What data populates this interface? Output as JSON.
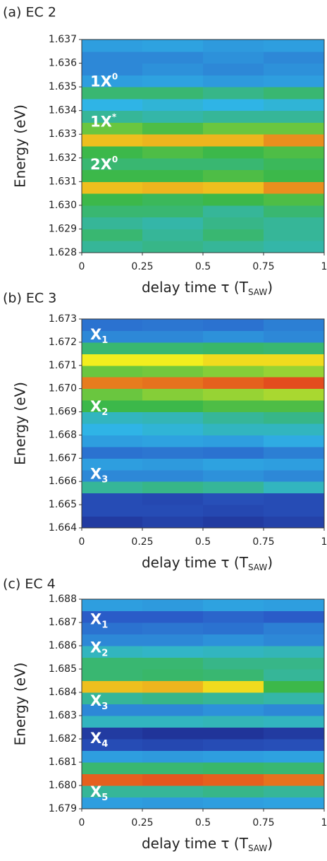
{
  "chart_data": [
    {
      "type": "heatmap",
      "title": "(a) EC 2",
      "xlabel": "delay time τ (T",
      "xlabel_sub": "SAW",
      "xlabel_end": ")",
      "ylabel": "Energy (eV)",
      "xlim": [
        0,
        1
      ],
      "xticks": [
        0,
        0.25,
        0.5,
        0.75,
        1
      ],
      "ylim": [
        1.628,
        1.637
      ],
      "yticks": [
        1.628,
        1.629,
        {
          "value": 1.63,
          "label": "1.630"
        },
        1.631,
        1.632,
        1.633,
        1.634,
        1.635,
        1.636,
        1.637
      ],
      "zlim": [
        0,
        1
      ],
      "colormap": [
        "#1a1a7a",
        "#2a5cc8",
        "#2fb4e6",
        "#3cb84a",
        "#f2ee1e",
        "#e0301e"
      ],
      "z": [
        [
          0.5,
          0.52,
          0.5,
          0.48
        ],
        [
          0.55,
          0.5,
          0.55,
          0.5
        ],
        [
          0.5,
          0.48,
          0.52,
          0.5
        ],
        [
          0.55,
          0.55,
          0.5,
          0.55
        ],
        [
          0.6,
          0.58,
          0.6,
          0.62
        ],
        [
          0.85,
          0.86,
          0.85,
          0.9
        ],
        [
          0.6,
          0.6,
          0.62,
          0.6
        ],
        [
          0.55,
          0.55,
          0.55,
          0.58
        ],
        [
          0.6,
          0.62,
          0.6,
          0.62
        ],
        [
          0.85,
          0.86,
          0.86,
          0.9
        ],
        [
          0.65,
          0.62,
          0.65,
          0.65
        ],
        [
          0.5,
          0.48,
          0.5,
          0.5
        ],
        [
          0.4,
          0.42,
          0.4,
          0.42
        ],
        [
          0.55,
          0.55,
          0.52,
          0.55
        ],
        [
          0.35,
          0.36,
          0.34,
          0.35
        ],
        [
          0.3,
          0.32,
          0.3,
          0.32
        ],
        [
          0.3,
          0.3,
          0.32,
          0.3
        ],
        [
          0.35,
          0.36,
          0.34,
          0.35
        ]
      ],
      "annotations": [
        {
          "text": "1X",
          "sup": "0",
          "y": 1.6352
        },
        {
          "text": "1X",
          "sup": "*",
          "y": 1.6335
        },
        {
          "text": "2X",
          "sup": "0",
          "y": 1.6317
        }
      ]
    },
    {
      "type": "heatmap",
      "title": "(b) EC 3",
      "xlabel": "delay time τ (T",
      "xlabel_sub": "SAW",
      "xlabel_end": ")",
      "ylabel": "Energy (eV)",
      "xlim": [
        0,
        1
      ],
      "xticks": [
        0,
        0.25,
        0.5,
        0.75,
        1
      ],
      "ylim": [
        1.664,
        1.673
      ],
      "yticks": [
        1.664,
        1.665,
        1.666,
        1.667,
        1.668,
        1.669,
        {
          "value": 1.67,
          "label": "1.670"
        },
        1.671,
        1.672,
        1.673
      ],
      "zlim": [
        0,
        1
      ],
      "colormap": [
        "#1a1a7a",
        "#2a5cc8",
        "#2fb4e6",
        "#3cb84a",
        "#f2ee1e",
        "#e0301e"
      ],
      "z": [
        [
          0.1,
          0.12,
          0.1,
          0.12
        ],
        [
          0.15,
          0.15,
          0.14,
          0.15
        ],
        [
          0.15,
          0.14,
          0.16,
          0.15
        ],
        [
          0.5,
          0.52,
          0.5,
          0.45
        ],
        [
          0.3,
          0.3,
          0.32,
          0.3
        ],
        [
          0.35,
          0.34,
          0.36,
          0.35
        ],
        [
          0.25,
          0.26,
          0.25,
          0.28
        ],
        [
          0.35,
          0.36,
          0.35,
          0.38
        ],
        [
          0.4,
          0.42,
          0.45,
          0.45
        ],
        [
          0.45,
          0.46,
          0.5,
          0.52
        ],
        [
          0.6,
          0.6,
          0.62,
          0.62
        ],
        [
          0.65,
          0.68,
          0.7,
          0.72
        ],
        [
          0.92,
          0.93,
          0.95,
          0.97
        ],
        [
          0.65,
          0.66,
          0.68,
          0.7
        ],
        [
          0.8,
          0.8,
          0.82,
          0.82
        ],
        [
          0.55,
          0.55,
          0.56,
          0.55
        ],
        [
          0.3,
          0.3,
          0.32,
          0.3
        ],
        [
          0.25,
          0.26,
          0.25,
          0.28
        ]
      ],
      "annotations": [
        {
          "text": "X",
          "sub": "1",
          "y": 1.6723
        },
        {
          "text": "X",
          "sub": "2",
          "y": 1.6692
        },
        {
          "text": "X",
          "sub": "3",
          "y": 1.6663
        }
      ]
    },
    {
      "type": "heatmap",
      "title": "(c) EC 4",
      "xlabel": "delay time τ (T",
      "xlabel_sub": "SAW",
      "xlabel_end": ")",
      "ylabel": "Energy (eV)",
      "xlim": [
        0,
        1
      ],
      "xticks": [
        0,
        0.25,
        0.5,
        0.75,
        1
      ],
      "ylim": [
        1.679,
        1.688
      ],
      "yticks": [
        1.679,
        {
          "value": 1.68,
          "label": "1.680"
        },
        1.681,
        1.682,
        1.683,
        1.684,
        1.685,
        1.686,
        1.687,
        1.688
      ],
      "zlim": [
        0,
        1
      ],
      "colormap": [
        "#1a1a7a",
        "#2a5cc8",
        "#2fb4e6",
        "#3cb84a",
        "#f2ee1e",
        "#e0301e"
      ],
      "z": [
        [
          0.35,
          0.34,
          0.35,
          0.36
        ],
        [
          0.5,
          0.5,
          0.52,
          0.5
        ],
        [
          0.95,
          0.96,
          0.95,
          0.93
        ],
        [
          0.55,
          0.55,
          0.56,
          0.55
        ],
        [
          0.35,
          0.34,
          0.35,
          0.36
        ],
        [
          0.15,
          0.14,
          0.15,
          0.16
        ],
        [
          0.1,
          0.08,
          0.08,
          0.1
        ],
        [
          0.45,
          0.45,
          0.46,
          0.45
        ],
        [
          0.3,
          0.3,
          0.32,
          0.3
        ],
        [
          0.5,
          0.52,
          0.5,
          0.48
        ],
        [
          0.85,
          0.86,
          0.82,
          0.6
        ],
        [
          0.55,
          0.56,
          0.55,
          0.5
        ],
        [
          0.55,
          0.55,
          0.52,
          0.52
        ],
        [
          0.45,
          0.44,
          0.45,
          0.46
        ],
        [
          0.3,
          0.3,
          0.32,
          0.3
        ],
        [
          0.25,
          0.26,
          0.25,
          0.28
        ],
        [
          0.2,
          0.2,
          0.22,
          0.2
        ],
        [
          0.35,
          0.34,
          0.36,
          0.35
        ]
      ],
      "annotations": [
        {
          "text": "X",
          "sub": "1",
          "y": 1.6871
        },
        {
          "text": "X",
          "sub": "2",
          "y": 1.6859
        },
        {
          "text": "X",
          "sub": "3",
          "y": 1.6836
        },
        {
          "text": "X",
          "sub": "4",
          "y": 1.682
        },
        {
          "text": "X",
          "sub": "5",
          "y": 1.6797
        }
      ]
    }
  ]
}
